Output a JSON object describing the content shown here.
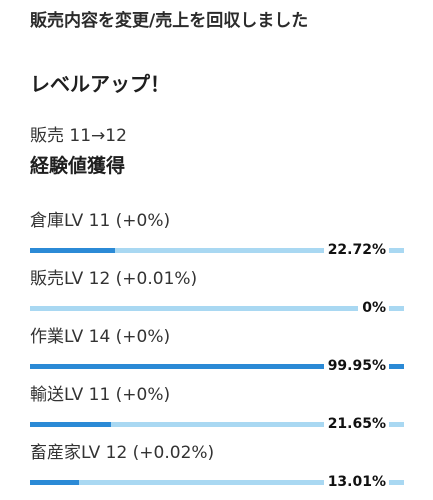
{
  "header": {
    "message": "販売内容を変更/売上を回収しました"
  },
  "levelup": {
    "title": "レベルアップ！",
    "sales_level": "販売 11→12"
  },
  "experience": {
    "title": "経験値獲得",
    "skills": [
      {
        "label": "倉庫LV 11 (+0%)",
        "percent_text": "22.72%",
        "progress": 0.2272
      },
      {
        "label": "販売LV 12 (+0.01%)",
        "percent_text": "0%",
        "progress": 0.0
      },
      {
        "label": "作業LV 14 (+0%)",
        "percent_text": "99.95%",
        "progress": 0.9995
      },
      {
        "label": "輸送LV 11 (+0%)",
        "percent_text": "21.65%",
        "progress": 0.2165
      },
      {
        "label": "畜産家LV 12 (+0.02%)",
        "percent_text": "13.01%",
        "progress": 0.1301
      }
    ]
  },
  "colors": {
    "bar_fill": "#2b8ad6",
    "bar_track": "#a9d8f2"
  }
}
